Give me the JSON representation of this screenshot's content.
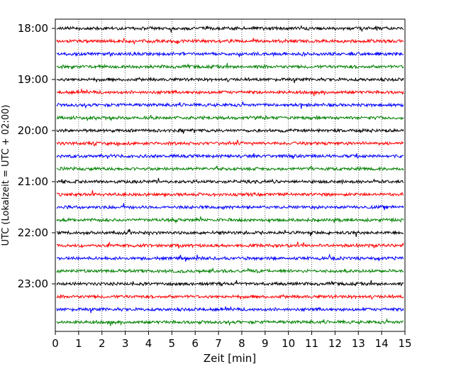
{
  "chart_data": {
    "type": "line",
    "title": "",
    "xlabel": "Zeit  [min]",
    "ylabel": "UTC (Lokalzeit = UTC + 02:00)",
    "xlim": [
      0,
      15
    ],
    "x_ticks": [
      "0",
      "1",
      "2",
      "3",
      "4",
      "5",
      "6",
      "7",
      "8",
      "9",
      "10",
      "11",
      "12",
      "13",
      "14",
      "15"
    ],
    "y_ticks": [
      "18:00",
      "19:00",
      "20:00",
      "21:00",
      "22:00",
      "23:00"
    ],
    "grid": "vertical dotted",
    "line_colors": [
      "#000000",
      "#ff0000",
      "#0000ff",
      "#008000"
    ],
    "trace_start_times": [
      "18:00",
      "18:15",
      "18:30",
      "18:45",
      "19:00",
      "19:15",
      "19:30",
      "19:45",
      "20:00",
      "20:15",
      "20:30",
      "20:45",
      "21:00",
      "21:15",
      "21:30",
      "21:45",
      "22:00",
      "22:15",
      "22:30",
      "22:45",
      "23:00",
      "23:15",
      "23:30",
      "23:45"
    ]
  }
}
